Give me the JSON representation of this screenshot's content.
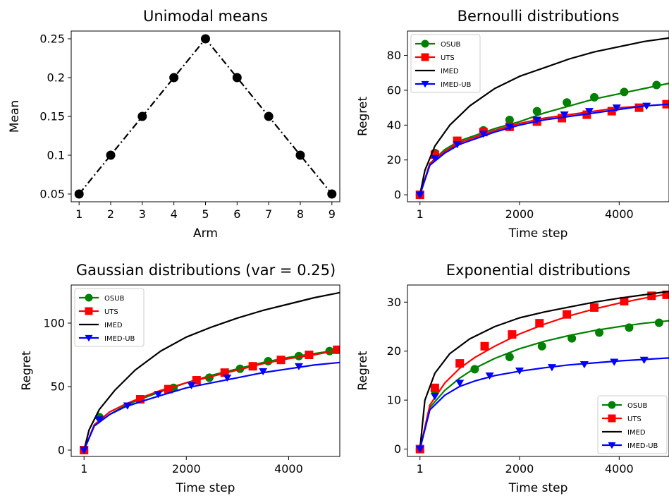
{
  "chart_data": [
    {
      "type": "line",
      "title": "Unimodal means",
      "xlabel": "Arm",
      "ylabel": "Mean",
      "xlim": [
        0.75,
        9.25
      ],
      "ylim": [
        0.04,
        0.26
      ],
      "xticks": [
        1,
        2,
        3,
        4,
        5,
        6,
        7,
        8,
        9
      ],
      "xtick_labels": [
        "1",
        "2",
        "3",
        "4",
        "5",
        "6",
        "7",
        "8",
        "9"
      ],
      "yticks": [
        0.05,
        0.1,
        0.15,
        0.2,
        0.25
      ],
      "ytick_labels": [
        "0.05",
        "0.1",
        "0.15",
        "0.2",
        "0.25"
      ],
      "grid": false,
      "series": [
        {
          "color": "#000000",
          "line_style": "dashdot",
          "marker": "circle",
          "x": [
            1,
            2,
            3,
            4,
            5,
            6,
            7,
            8,
            9
          ],
          "y": [
            0.05,
            0.1,
            0.15,
            0.2,
            0.25,
            0.2,
            0.15,
            0.1,
            0.05
          ]
        }
      ]
    },
    {
      "type": "line",
      "title": "Bernoulli distributions",
      "xlabel": "Time step",
      "ylabel": "Regret",
      "xlim": [
        -250,
        5000
      ],
      "ylim": [
        -4,
        94
      ],
      "xticks": [
        1,
        2000,
        4000
      ],
      "xtick_labels": [
        "1",
        "2000",
        "4000"
      ],
      "yticks": [
        0,
        20,
        40,
        60,
        80
      ],
      "ytick_labels": [
        "0",
        "20",
        "40",
        "60",
        "80"
      ],
      "grid": false,
      "legend_position": "top-left",
      "series": [
        {
          "name": "OSUB",
          "color": "#008000",
          "marker": "circle",
          "x": [
            1,
            200,
            500,
            800,
            1100,
            1500,
            2000,
            2500,
            3000,
            3500,
            4000,
            4500,
            5000
          ],
          "y": [
            0,
            18,
            26,
            31,
            34,
            38,
            42,
            47,
            51,
            55,
            58,
            61,
            64
          ],
          "marker_x": [
            1,
            300,
            750,
            1275,
            1800,
            2350,
            2950,
            3500,
            4100,
            4750
          ],
          "marker_y": [
            0,
            24,
            31,
            37,
            43,
            48,
            53,
            56,
            59,
            63
          ]
        },
        {
          "name": "UTS",
          "color": "#ff0000",
          "marker": "square",
          "x": [
            1,
            200,
            500,
            800,
            1100,
            1500,
            2000,
            2500,
            3000,
            3500,
            4000,
            4500,
            5000
          ],
          "y": [
            0,
            18,
            25,
            30,
            33,
            37,
            41,
            44,
            46,
            48,
            50,
            51,
            52
          ],
          "marker_x": [
            1,
            300,
            750,
            1275,
            1800,
            2350,
            2850,
            3350,
            3850,
            4400,
            4950
          ],
          "marker_y": [
            0,
            23,
            31,
            36,
            39,
            42,
            44,
            46,
            48,
            50,
            52
          ]
        },
        {
          "name": "IMED",
          "color": "#000000",
          "marker": "none",
          "x": [
            1,
            100,
            300,
            600,
            1000,
            1500,
            2000,
            2500,
            3000,
            3500,
            4000,
            4500,
            5000
          ],
          "y": [
            0,
            14,
            28,
            40,
            51,
            61,
            68,
            73,
            78,
            82,
            85,
            88,
            90
          ]
        },
        {
          "name": "IMED-UB",
          "color": "#0000ff",
          "marker": "triangle-down",
          "x": [
            1,
            200,
            500,
            800,
            1100,
            1500,
            2000,
            2500,
            3000,
            3500,
            4000,
            4500,
            5000
          ],
          "y": [
            0,
            17,
            24,
            29,
            32,
            36,
            40,
            43,
            45,
            47,
            49,
            51,
            52
          ],
          "marker_x": [
            1,
            300,
            750,
            1275,
            1800,
            2350,
            2900,
            3400,
            3950,
            4550
          ],
          "marker_y": [
            0,
            21,
            29,
            35,
            39,
            43,
            46,
            48,
            50,
            51
          ]
        }
      ]
    },
    {
      "type": "line",
      "title": "Gaussian distributions (var = 0.25)",
      "xlabel": "Time step",
      "ylabel": "Regret",
      "xlim": [
        -250,
        5000
      ],
      "ylim": [
        -5,
        130
      ],
      "xticks": [
        1,
        2000,
        4000
      ],
      "xtick_labels": [
        "1",
        "2000",
        "4000"
      ],
      "yticks": [
        0,
        50,
        100
      ],
      "ytick_labels": [
        "0",
        "50",
        "100"
      ],
      "grid": false,
      "legend_position": "top-left",
      "series": [
        {
          "name": "OSUB",
          "color": "#008000",
          "marker": "circle",
          "x": [
            1,
            200,
            500,
            800,
            1100,
            1500,
            2000,
            2500,
            3000,
            3500,
            4000,
            4500,
            5000
          ],
          "y": [
            0,
            19,
            28,
            35,
            40,
            46,
            53,
            59,
            64,
            69,
            73,
            76,
            79
          ],
          "marker_x": [
            1,
            300,
            1100,
            1750,
            2450,
            3050,
            3600,
            4200,
            4800
          ],
          "marker_y": [
            0,
            26,
            40,
            49,
            57,
            64,
            70,
            74,
            78
          ]
        },
        {
          "name": "UTS",
          "color": "#ff0000",
          "marker": "square",
          "x": [
            1,
            200,
            500,
            800,
            1100,
            1500,
            2000,
            2500,
            3000,
            3500,
            4000,
            4500,
            5000
          ],
          "y": [
            0,
            20,
            30,
            36,
            41,
            47,
            53,
            58,
            63,
            68,
            72,
            75,
            79
          ],
          "marker_x": [
            1,
            1100,
            1650,
            2200,
            2750,
            3300,
            3850,
            4400,
            4950
          ],
          "marker_y": [
            0,
            40,
            48,
            55,
            61,
            66,
            71,
            75,
            79
          ]
        },
        {
          "name": "IMED",
          "color": "#000000",
          "marker": "none",
          "x": [
            1,
            100,
            300,
            600,
            1000,
            1500,
            2000,
            2500,
            3000,
            3500,
            4000,
            4500,
            5000
          ],
          "y": [
            0,
            16,
            32,
            47,
            63,
            78,
            89,
            97,
            104,
            110,
            115,
            120,
            124
          ],
          "marker_x": [],
          "marker_y": []
        },
        {
          "name": "IMED-UB",
          "color": "#0000ff",
          "marker": "triangle-down",
          "x": [
            1,
            200,
            500,
            800,
            1100,
            1500,
            2000,
            2500,
            3000,
            3500,
            4000,
            4500,
            5000
          ],
          "y": [
            0,
            19,
            28,
            34,
            38,
            43,
            49,
            53,
            57,
            61,
            64,
            67,
            69
          ],
          "marker_x": [
            1,
            300,
            850,
            1450,
            2100,
            2800,
            3500,
            4200
          ],
          "marker_y": [
            0,
            24,
            35,
            44,
            51,
            57,
            62,
            66
          ]
        }
      ]
    },
    {
      "type": "line",
      "title": "Exponential distributions",
      "xlabel": "Time step",
      "ylabel": "Regret",
      "xlim": [
        -250,
        5000
      ],
      "ylim": [
        -1.5,
        33.5
      ],
      "xticks": [
        1,
        2000,
        4000
      ],
      "xtick_labels": [
        "1",
        "2000",
        "4000"
      ],
      "yticks": [
        0,
        10,
        20,
        30
      ],
      "ytick_labels": [
        "0",
        "10",
        "20",
        "30"
      ],
      "grid": false,
      "legend_position": "bottom-right",
      "series": [
        {
          "name": "OSUB",
          "color": "#008000",
          "marker": "circle",
          "x": [
            1,
            200,
            500,
            800,
            1100,
            1500,
            2000,
            2500,
            3000,
            3500,
            4000,
            4500,
            5000
          ],
          "y": [
            0,
            8.5,
            12,
            14.5,
            16.5,
            18.5,
            20.5,
            22,
            23.2,
            24.2,
            25,
            25.7,
            26.2
          ],
          "marker_x": [
            1,
            300,
            1100,
            1800,
            2450,
            3050,
            3600,
            4200,
            4800
          ],
          "marker_y": [
            0,
            12,
            16.3,
            18.8,
            21,
            22.6,
            23.8,
            24.8,
            25.8
          ]
        },
        {
          "name": "UTS",
          "color": "#ff0000",
          "marker": "square",
          "x": [
            1,
            200,
            500,
            800,
            1100,
            1500,
            2000,
            2500,
            3000,
            3500,
            4000,
            4500,
            5000
          ],
          "y": [
            0,
            9,
            13.5,
            16.5,
            18.7,
            21,
            23.5,
            25.5,
            27.2,
            28.6,
            29.8,
            30.8,
            31.7
          ],
          "marker_x": [
            1,
            300,
            800,
            1300,
            1850,
            2400,
            2950,
            3500,
            4100,
            4650,
            4950
          ],
          "marker_y": [
            0,
            12.5,
            17.5,
            21,
            23.4,
            25.7,
            27.5,
            28.9,
            30.2,
            31.3,
            31.5
          ]
        },
        {
          "name": "IMED",
          "color": "#000000",
          "marker": "none",
          "x": [
            1,
            100,
            300,
            600,
            1000,
            1500,
            2000,
            2500,
            3000,
            3500,
            4000,
            4500,
            5000
          ],
          "y": [
            0,
            10,
            15.5,
            19.5,
            22.5,
            25,
            26.8,
            28,
            29,
            30,
            30.8,
            31.5,
            32.2
          ],
          "marker_x": [],
          "marker_y": []
        },
        {
          "name": "IMED-UB",
          "color": "#0000ff",
          "marker": "triangle-down",
          "x": [
            1,
            200,
            500,
            800,
            1100,
            1500,
            2000,
            2500,
            3000,
            3500,
            4000,
            4500,
            5000
          ],
          "y": [
            0,
            8,
            11,
            12.8,
            13.9,
            15,
            15.9,
            16.6,
            17.2,
            17.6,
            18,
            18.3,
            18.6
          ],
          "marker_x": [
            1,
            300,
            800,
            1400,
            2000,
            2650,
            3300,
            3900,
            4500
          ],
          "marker_y": [
            0,
            10.8,
            13.5,
            15,
            16,
            16.7,
            17.3,
            17.8,
            18.2
          ]
        }
      ]
    }
  ]
}
